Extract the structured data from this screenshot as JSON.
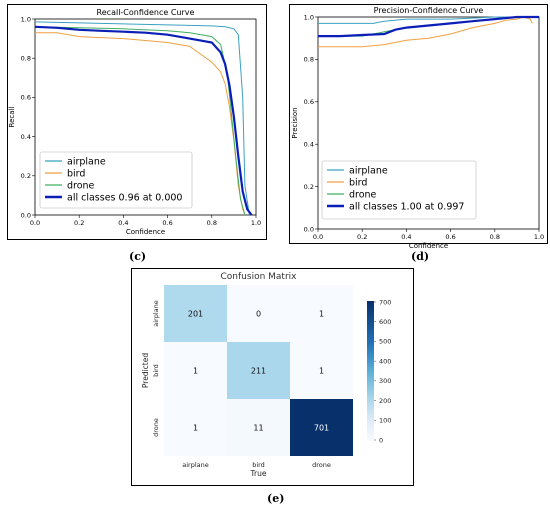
{
  "labels": {
    "c": "(c)",
    "d": "(d)",
    "e": "(e)"
  },
  "colors": {
    "airplane": "#3ba0c0",
    "bird": "#f0a040",
    "drone": "#40b060",
    "all": "#0a1fb8"
  },
  "chart_data": [
    {
      "type": "line",
      "title": "Recall-Confidence Curve",
      "xlabel": "Confidence",
      "ylabel": "Recall",
      "xlim": [
        0,
        1
      ],
      "ylim": [
        0,
        1
      ],
      "xticks": [
        "0.0",
        "0.2",
        "0.4",
        "0.6",
        "0.8",
        "1.0"
      ],
      "yticks": [
        "0.0",
        "0.2",
        "0.4",
        "0.6",
        "0.8",
        "1.0"
      ],
      "legend_position": "lower-left",
      "series": [
        {
          "name": "airplane",
          "x": [
            0,
            0.2,
            0.4,
            0.6,
            0.8,
            0.86,
            0.9,
            0.92,
            0.94,
            0.95,
            0.97
          ],
          "y": [
            0.985,
            0.98,
            0.975,
            0.97,
            0.965,
            0.96,
            0.95,
            0.92,
            0.6,
            0.15,
            0
          ]
        },
        {
          "name": "bird",
          "x": [
            0,
            0.05,
            0.1,
            0.2,
            0.4,
            0.6,
            0.7,
            0.8,
            0.84,
            0.86,
            0.88,
            0.9,
            0.92,
            0.94,
            0.95
          ],
          "y": [
            0.93,
            0.93,
            0.93,
            0.91,
            0.9,
            0.88,
            0.86,
            0.78,
            0.73,
            0.67,
            0.55,
            0.38,
            0.15,
            0.03,
            0
          ]
        },
        {
          "name": "drone",
          "x": [
            0,
            0.2,
            0.4,
            0.6,
            0.7,
            0.8,
            0.84,
            0.87,
            0.89,
            0.91,
            0.93,
            0.95
          ],
          "y": [
            0.96,
            0.955,
            0.95,
            0.94,
            0.93,
            0.91,
            0.87,
            0.72,
            0.5,
            0.28,
            0.08,
            0
          ]
        },
        {
          "name": "all classes 0.96 at 0.000",
          "x": [
            0,
            0.1,
            0.2,
            0.3,
            0.4,
            0.5,
            0.6,
            0.7,
            0.8,
            0.84,
            0.86,
            0.88,
            0.9,
            0.92,
            0.94,
            0.96,
            0.98
          ],
          "y": [
            0.96,
            0.955,
            0.945,
            0.94,
            0.935,
            0.93,
            0.92,
            0.9,
            0.88,
            0.83,
            0.77,
            0.66,
            0.5,
            0.3,
            0.12,
            0.03,
            0
          ]
        }
      ]
    },
    {
      "type": "line",
      "title": "Precision-Confidence Curve",
      "xlabel": "Confidence",
      "ylabel": "Precision",
      "xlim": [
        0,
        1
      ],
      "ylim": [
        0,
        1
      ],
      "xticks": [
        "0.0",
        "0.2",
        "0.4",
        "0.6",
        "0.8",
        "1.0"
      ],
      "yticks": [
        "0.0",
        "0.2",
        "0.4",
        "0.6",
        "0.8",
        "1.0"
      ],
      "legend_position": "lower-right",
      "series": [
        {
          "name": "airplane",
          "x": [
            0,
            0.1,
            0.2,
            0.25,
            0.3,
            0.4,
            0.5,
            0.6,
            0.7,
            0.8,
            0.9,
            1.0
          ],
          "y": [
            0.97,
            0.97,
            0.97,
            0.97,
            0.98,
            0.99,
            0.99,
            0.99,
            0.995,
            1.0,
            1.0,
            1.0
          ]
        },
        {
          "name": "bird",
          "x": [
            0,
            0.1,
            0.2,
            0.3,
            0.4,
            0.5,
            0.6,
            0.7,
            0.75,
            0.8,
            0.85,
            0.9,
            0.93,
            0.96,
            0.97
          ],
          "y": [
            0.86,
            0.86,
            0.86,
            0.87,
            0.89,
            0.9,
            0.92,
            0.95,
            0.96,
            0.97,
            0.985,
            0.99,
            1.0,
            0.99,
            0.97
          ]
        },
        {
          "name": "drone",
          "x": [
            0,
            0.2,
            0.3,
            0.4,
            0.5,
            0.6,
            0.7,
            0.8,
            0.9,
            1.0
          ],
          "y": [
            0.91,
            0.91,
            0.93,
            0.95,
            0.96,
            0.97,
            0.98,
            0.99,
            1.0,
            1.0
          ]
        },
        {
          "name": "all classes 1.00 at 0.997",
          "x": [
            0,
            0.1,
            0.2,
            0.3,
            0.35,
            0.4,
            0.5,
            0.6,
            0.7,
            0.8,
            0.9,
            1.0
          ],
          "y": [
            0.91,
            0.91,
            0.915,
            0.92,
            0.94,
            0.95,
            0.96,
            0.97,
            0.98,
            0.99,
            1.0,
            1.0
          ]
        }
      ]
    },
    {
      "type": "heatmap",
      "title": "Confusion Matrix",
      "xlabel": "True",
      "ylabel": "Predicted",
      "x_categories": [
        "airplane",
        "bird",
        "drone"
      ],
      "y_categories": [
        "airplane",
        "bird",
        "drone"
      ],
      "values": [
        [
          201,
          0,
          1
        ],
        [
          1,
          211,
          1
        ],
        [
          1,
          11,
          701
        ]
      ],
      "colorbar_range": [
        0,
        700
      ],
      "colorbar_ticks": [
        "0",
        "100",
        "200",
        "300",
        "400",
        "500",
        "600",
        "700"
      ]
    }
  ]
}
